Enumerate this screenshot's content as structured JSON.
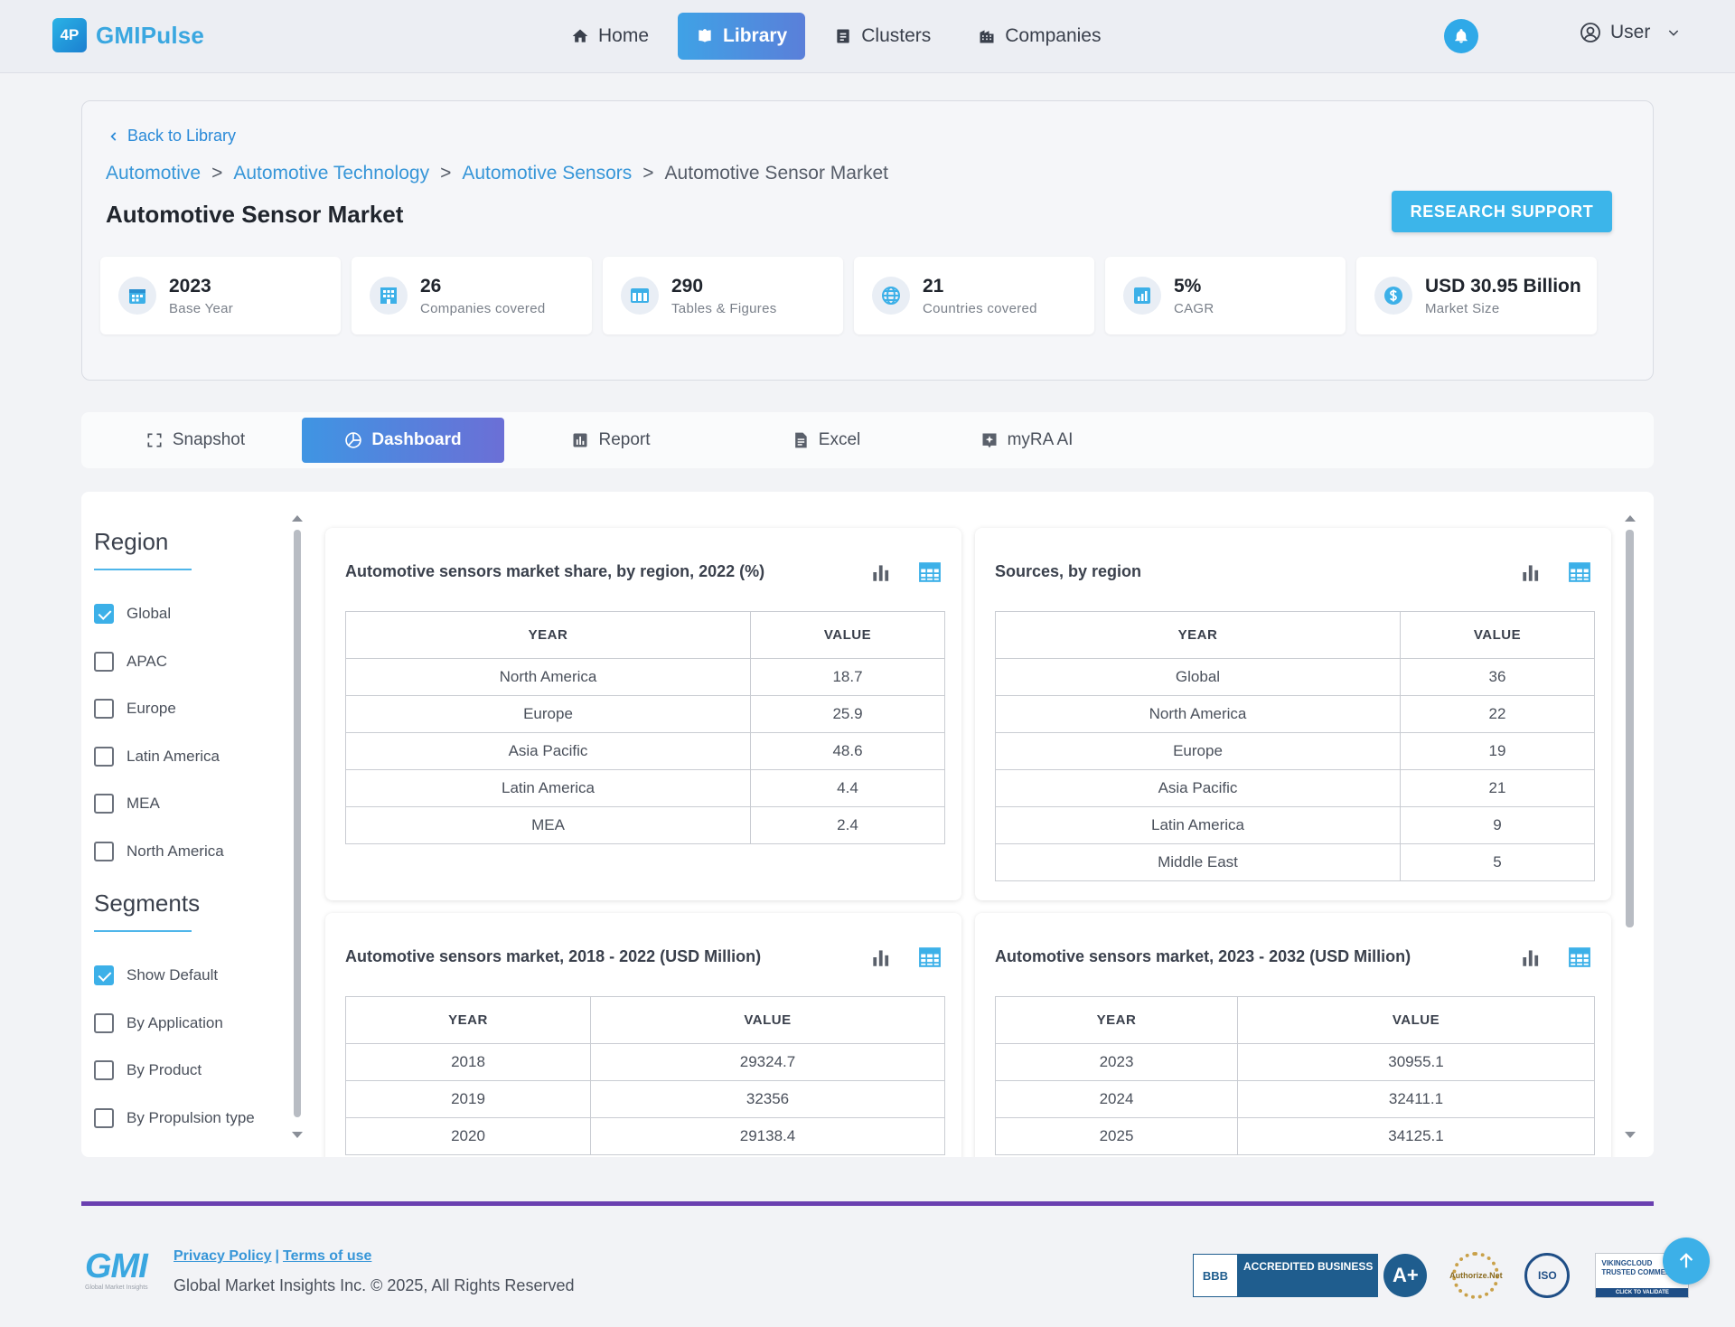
{
  "app": {
    "name": "GMIPulse",
    "logo_mark": "4P"
  },
  "nav": {
    "items": [
      {
        "label": "Home",
        "icon": "home-icon"
      },
      {
        "label": "Library",
        "icon": "book-icon",
        "active": true
      },
      {
        "label": "Clusters",
        "icon": "clusters-icon"
      },
      {
        "label": "Companies",
        "icon": "building-icon"
      }
    ],
    "user_label": "User"
  },
  "header": {
    "back_label": "Back to Library",
    "breadcrumbs": [
      "Automotive",
      "Automotive Technology",
      "Automotive Sensors"
    ],
    "breadcrumb_current": "Automotive Sensor Market",
    "separator": ">",
    "title": "Automotive Sensor Market",
    "research_button": "RESEARCH SUPPORT",
    "stats": [
      {
        "value": "2023",
        "label": "Base Year",
        "icon": "calendar-icon"
      },
      {
        "value": "26",
        "label": "Companies covered",
        "icon": "building-icon"
      },
      {
        "value": "290",
        "label": "Tables & Figures",
        "icon": "table-icon"
      },
      {
        "value": "21",
        "label": "Countries covered",
        "icon": "globe-icon"
      },
      {
        "value": "5%",
        "label": "CAGR",
        "icon": "chart-icon"
      },
      {
        "value": "USD 30.95 Billion",
        "label": "Market Size",
        "icon": "dollar-icon"
      }
    ]
  },
  "tabs": [
    {
      "label": "Snapshot",
      "icon": "snapshot-icon"
    },
    {
      "label": "Dashboard",
      "icon": "dashboard-icon",
      "active": true
    },
    {
      "label": "Report",
      "icon": "report-icon"
    },
    {
      "label": "Excel",
      "icon": "excel-icon"
    },
    {
      "label": "myRA AI",
      "icon": "ai-icon"
    }
  ],
  "filters": {
    "region_title": "Region",
    "regions": [
      {
        "label": "Global",
        "checked": true
      },
      {
        "label": "APAC",
        "checked": false
      },
      {
        "label": "Europe",
        "checked": false
      },
      {
        "label": "Latin America",
        "checked": false
      },
      {
        "label": "MEA",
        "checked": false
      },
      {
        "label": "North America",
        "checked": false
      }
    ],
    "segments_title": "Segments",
    "segments": [
      {
        "label": "Show Default",
        "checked": true
      },
      {
        "label": "By Application",
        "checked": false
      },
      {
        "label": "By Product",
        "checked": false
      },
      {
        "label": "By Propulsion type",
        "checked": false
      }
    ]
  },
  "panels": [
    {
      "title": "Automotive sensors market share, by region, 2022 (%)",
      "col1": "YEAR",
      "col2": "VALUE",
      "rows": [
        [
          "North America",
          "18.7"
        ],
        [
          "Europe",
          "25.9"
        ],
        [
          "Asia Pacific",
          "48.6"
        ],
        [
          "Latin America",
          "4.4"
        ],
        [
          "MEA",
          "2.4"
        ]
      ]
    },
    {
      "title": "Sources, by region",
      "col1": "YEAR",
      "col2": "VALUE",
      "rows": [
        [
          "Global",
          "36"
        ],
        [
          "North America",
          "22"
        ],
        [
          "Europe",
          "19"
        ],
        [
          "Asia Pacific",
          "21"
        ],
        [
          "Latin America",
          "9"
        ],
        [
          "Middle East",
          "5"
        ]
      ]
    },
    {
      "title": "Automotive sensors market, 2018 - 2022 (USD Million)",
      "col1": "YEAR",
      "col2": "VALUE",
      "rows": [
        [
          "2018",
          "29324.7"
        ],
        [
          "2019",
          "32356"
        ],
        [
          "2020",
          "29138.4"
        ]
      ]
    },
    {
      "title": "Automotive sensors market, 2023 - 2032 (USD Million)",
      "col1": "YEAR",
      "col2": "VALUE",
      "rows": [
        [
          "2023",
          "30955.1"
        ],
        [
          "2024",
          "32411.1"
        ],
        [
          "2025",
          "34125.1"
        ]
      ]
    }
  ],
  "footer": {
    "logo_text": "GMI",
    "logo_sub": "Global Market Insights",
    "privacy": "Privacy Policy",
    "link_sep": "|",
    "terms": "Terms of use",
    "copyright": "Global Market Insights Inc. © 2025, All Rights Reserved",
    "badges": {
      "bbb_logo": "BBB",
      "bbb_text": "ACCREDITED BUSINESS",
      "bbb_rating": "A+",
      "authorize": "Authorize.Net",
      "iso": "ISO",
      "viking_top": "VIKINGCLOUD TRUSTED COMMERCE",
      "viking_bottom": "CLICK TO VALIDATE"
    }
  },
  "colors": {
    "accent": "#3cb0e8",
    "brand": "#3aa7e0",
    "footer_line": "#6a3fb0"
  }
}
